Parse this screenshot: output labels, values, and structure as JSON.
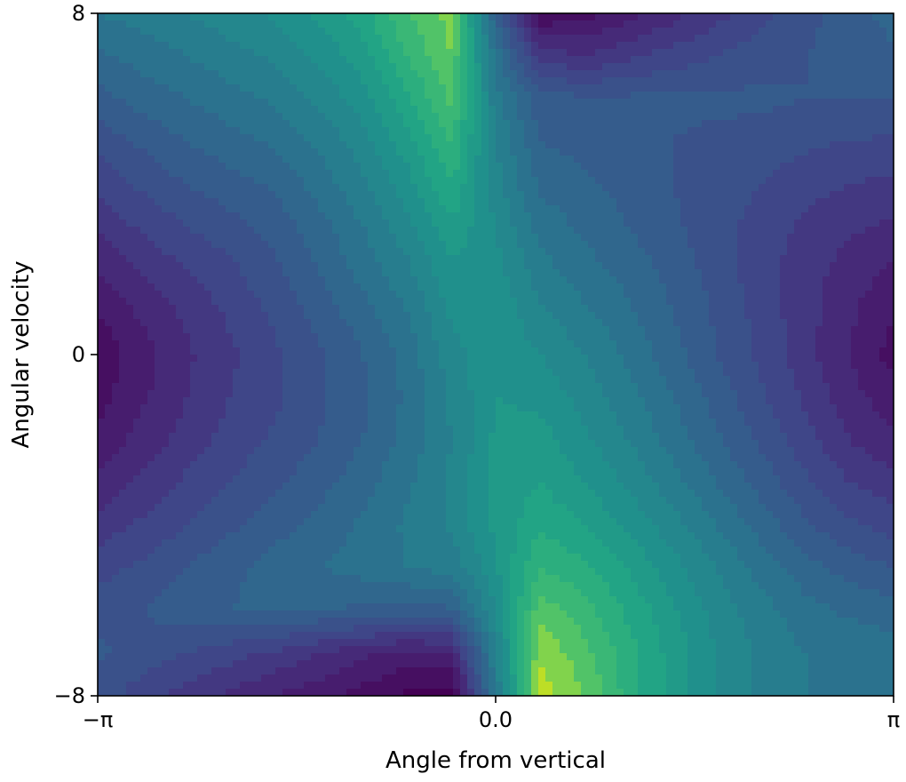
{
  "chart_data": {
    "type": "heatmap",
    "style": "filled-contour",
    "colormap": "viridis",
    "title": "",
    "xlabel": "Angle from vertical",
    "ylabel": "Angular velocity",
    "xlim": [
      -3.14159,
      3.14159
    ],
    "ylim": [
      -8,
      8
    ],
    "x_ticks": [
      {
        "value": -3.14159,
        "label": "−π"
      },
      {
        "value": 0,
        "label": "0.0"
      },
      {
        "value": 3.14159,
        "label": "π"
      }
    ],
    "y_ticks": [
      {
        "value": -8,
        "label": "−8"
      },
      {
        "value": 0,
        "label": "0"
      },
      {
        "value": 8,
        "label": "8"
      }
    ],
    "grid": false,
    "x": [
      -3.14159,
      -2.79253,
      -2.44346,
      -2.0944,
      -1.74533,
      -1.39626,
      -1.0472,
      -0.69813,
      -0.34907,
      0,
      0.34907,
      0.69813,
      1.0472,
      1.39626,
      1.74533,
      2.0944,
      2.44346,
      2.79253,
      3.14159
    ],
    "y": [
      -8,
      -7,
      -6,
      -5,
      -4,
      -3,
      -2,
      -1,
      0,
      1,
      2,
      3,
      4,
      5,
      6,
      7,
      8
    ],
    "z": [
      [
        0.33,
        0.27,
        0.23,
        0.19,
        0.15,
        0.12,
        0.08,
        0.04,
        0.02,
        0.5,
        0.98,
        0.9,
        0.78,
        0.68,
        0.6,
        0.53,
        0.5,
        0.5,
        0.5
      ],
      [
        0.36,
        0.33,
        0.3,
        0.27,
        0.24,
        0.2,
        0.16,
        0.13,
        0.15,
        0.55,
        0.94,
        0.87,
        0.77,
        0.68,
        0.6,
        0.54,
        0.5,
        0.49,
        0.48
      ],
      [
        0.33,
        0.35,
        0.38,
        0.4,
        0.41,
        0.4,
        0.39,
        0.38,
        0.39,
        0.6,
        0.88,
        0.82,
        0.74,
        0.66,
        0.58,
        0.52,
        0.47,
        0.44,
        0.42
      ],
      [
        0.28,
        0.31,
        0.35,
        0.39,
        0.42,
        0.45,
        0.47,
        0.5,
        0.52,
        0.64,
        0.8,
        0.76,
        0.7,
        0.62,
        0.55,
        0.48,
        0.42,
        0.38,
        0.35
      ],
      [
        0.22,
        0.26,
        0.3,
        0.34,
        0.38,
        0.42,
        0.46,
        0.51,
        0.56,
        0.66,
        0.74,
        0.7,
        0.64,
        0.57,
        0.5,
        0.43,
        0.36,
        0.31,
        0.28
      ],
      [
        0.16,
        0.21,
        0.26,
        0.3,
        0.34,
        0.38,
        0.43,
        0.49,
        0.56,
        0.66,
        0.7,
        0.65,
        0.59,
        0.52,
        0.45,
        0.38,
        0.31,
        0.25,
        0.22
      ],
      [
        0.11,
        0.17,
        0.22,
        0.27,
        0.31,
        0.35,
        0.4,
        0.47,
        0.55,
        0.66,
        0.67,
        0.61,
        0.55,
        0.48,
        0.41,
        0.34,
        0.27,
        0.2,
        0.16
      ],
      [
        0.08,
        0.14,
        0.2,
        0.25,
        0.29,
        0.34,
        0.39,
        0.46,
        0.56,
        0.65,
        0.64,
        0.58,
        0.52,
        0.45,
        0.38,
        0.31,
        0.24,
        0.17,
        0.12
      ],
      [
        0.06,
        0.13,
        0.19,
        0.24,
        0.29,
        0.34,
        0.4,
        0.47,
        0.58,
        0.64,
        0.6,
        0.55,
        0.49,
        0.42,
        0.35,
        0.29,
        0.22,
        0.15,
        0.08
      ],
      [
        0.1,
        0.16,
        0.21,
        0.26,
        0.31,
        0.37,
        0.43,
        0.5,
        0.61,
        0.64,
        0.56,
        0.51,
        0.46,
        0.4,
        0.34,
        0.28,
        0.22,
        0.16,
        0.1
      ],
      [
        0.15,
        0.21,
        0.25,
        0.29,
        0.34,
        0.4,
        0.47,
        0.54,
        0.64,
        0.62,
        0.52,
        0.47,
        0.43,
        0.38,
        0.33,
        0.27,
        0.22,
        0.18,
        0.14
      ],
      [
        0.21,
        0.26,
        0.3,
        0.33,
        0.37,
        0.43,
        0.5,
        0.58,
        0.69,
        0.6,
        0.48,
        0.44,
        0.4,
        0.36,
        0.32,
        0.28,
        0.24,
        0.21,
        0.19
      ],
      [
        0.26,
        0.31,
        0.35,
        0.38,
        0.41,
        0.47,
        0.54,
        0.63,
        0.75,
        0.57,
        0.44,
        0.41,
        0.38,
        0.35,
        0.32,
        0.3,
        0.27,
        0.25,
        0.24
      ],
      [
        0.32,
        0.36,
        0.4,
        0.43,
        0.46,
        0.51,
        0.58,
        0.68,
        0.81,
        0.55,
        0.4,
        0.38,
        0.37,
        0.35,
        0.34,
        0.33,
        0.31,
        0.3,
        0.29
      ],
      [
        0.38,
        0.42,
        0.45,
        0.48,
        0.51,
        0.56,
        0.63,
        0.74,
        0.86,
        0.52,
        0.37,
        0.36,
        0.36,
        0.36,
        0.36,
        0.36,
        0.35,
        0.35,
        0.35
      ],
      [
        0.44,
        0.47,
        0.5,
        0.53,
        0.56,
        0.61,
        0.68,
        0.8,
        0.9,
        0.48,
        0.23,
        0.2,
        0.24,
        0.27,
        0.3,
        0.33,
        0.35,
        0.37,
        0.39
      ],
      [
        0.5,
        0.52,
        0.55,
        0.58,
        0.61,
        0.66,
        0.73,
        0.85,
        0.92,
        0.4,
        0.05,
        0.08,
        0.13,
        0.18,
        0.23,
        0.28,
        0.33,
        0.38,
        0.42
      ]
    ],
    "levels": 20
  }
}
